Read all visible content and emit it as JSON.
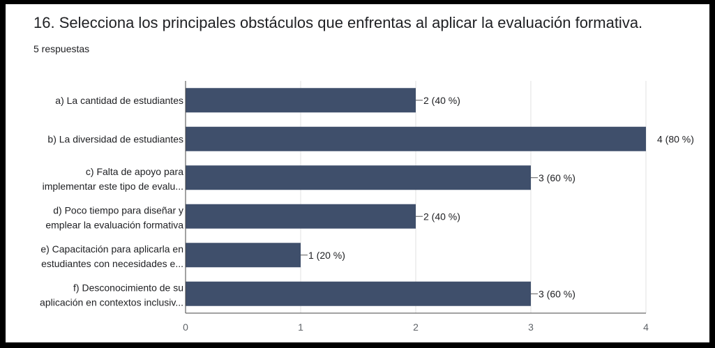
{
  "question": {
    "title": "16. Selecciona  los principales obstáculos que enfrentas al aplicar la evaluación formativa.",
    "responses": "5 respuestas"
  },
  "chart_data": {
    "type": "bar",
    "orientation": "horizontal",
    "categories": [
      [
        "a) La cantidad de estudiantes"
      ],
      [
        "b) La diversidad de estudiantes"
      ],
      [
        "c) Falta de apoyo para",
        "implementar este tipo de evalu..."
      ],
      [
        "d) Poco tiempo para diseñar y",
        "emplear la evaluación formativa"
      ],
      [
        "e) Capacitación para aplicarla en",
        "estudiantes con necesidades e..."
      ],
      [
        "f) Desconocimiento de su",
        "aplicación en contextos inclusiv..."
      ]
    ],
    "values": [
      2,
      4,
      3,
      2,
      1,
      3
    ],
    "data_labels": [
      "2 (40 %)",
      "4 (80 %)",
      "3 (60 %)",
      "2 (40 %)",
      "1 (20 %)",
      "3 (60 %)"
    ],
    "xlim": [
      0,
      4
    ],
    "x_ticks": [
      "0",
      "1",
      "2",
      "3",
      "4"
    ],
    "grid": true,
    "colors": {
      "bar": "#3f4f6b",
      "grid": "#e0e0e0",
      "axis": "#444444",
      "leader": "#555555"
    }
  }
}
